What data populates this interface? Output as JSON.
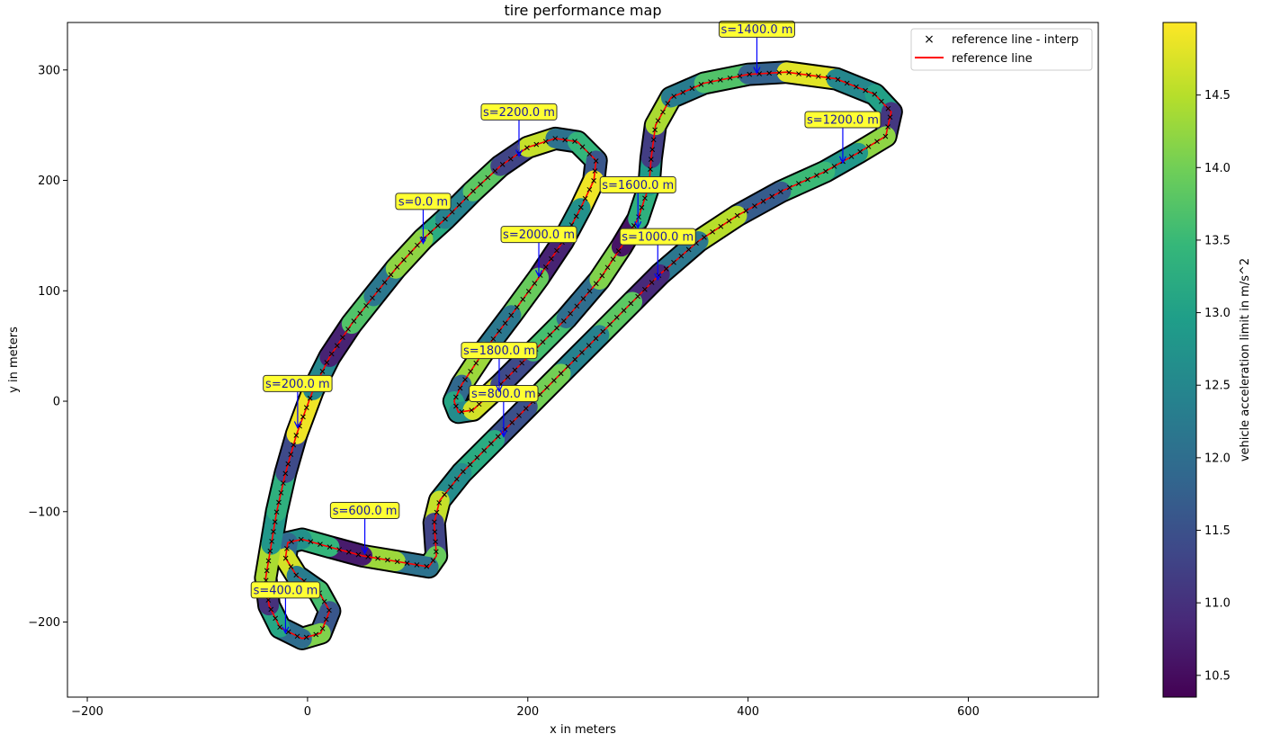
{
  "chart_data": {
    "type": "scatter",
    "title": "tire performance map",
    "xlabel": "x in meters",
    "ylabel": "y in meters",
    "xlim": [
      -218,
      718
    ],
    "ylim": [
      -268,
      343
    ],
    "xticks": [
      "−200",
      "0",
      "200",
      "400",
      "600"
    ],
    "xtick_values": [
      -200,
      0,
      200,
      400,
      600
    ],
    "yticks": [
      "300",
      "200",
      "100",
      "0",
      "−100",
      "−200"
    ],
    "ytick_values": [
      300,
      200,
      100,
      0,
      -100,
      -200
    ],
    "grid": false,
    "legend_position": "upper right",
    "legend": [
      {
        "label": "reference line - interp",
        "marker": "x",
        "color": "#000000"
      },
      {
        "label": "reference line",
        "marker": "line",
        "color": "#ff0000"
      }
    ],
    "colorbar": {
      "label": "vehicle acceleration limit in m/s^2",
      "range": [
        10.35,
        15.0
      ],
      "ticks": [
        "10.5",
        "11.0",
        "11.5",
        "12.0",
        "12.5",
        "13.0",
        "13.5",
        "14.0",
        "14.5"
      ],
      "tick_values": [
        10.5,
        11.0,
        11.5,
        12.0,
        12.5,
        13.0,
        13.5,
        14.0,
        14.5
      ],
      "colormap": "viridis"
    },
    "track_centerline": [
      [
        105,
        147
      ],
      [
        125,
        165
      ],
      [
        150,
        190
      ],
      [
        175,
        213
      ],
      [
        200,
        230
      ],
      [
        225,
        238
      ],
      [
        245,
        235
      ],
      [
        262,
        218
      ],
      [
        260,
        200
      ],
      [
        248,
        175
      ],
      [
        232,
        145
      ],
      [
        210,
        112
      ],
      [
        185,
        78
      ],
      [
        160,
        45
      ],
      [
        140,
        15
      ],
      [
        133,
        0
      ],
      [
        137,
        -10
      ],
      [
        150,
        -8
      ],
      [
        175,
        15
      ],
      [
        205,
        45
      ],
      [
        235,
        75
      ],
      [
        265,
        110
      ],
      [
        285,
        140
      ],
      [
        300,
        165
      ],
      [
        310,
        195
      ],
      [
        312,
        220
      ],
      [
        316,
        250
      ],
      [
        330,
        275
      ],
      [
        360,
        288
      ],
      [
        400,
        296
      ],
      [
        435,
        298
      ],
      [
        480,
        292
      ],
      [
        515,
        278
      ],
      [
        530,
        262
      ],
      [
        525,
        240
      ],
      [
        500,
        225
      ],
      [
        470,
        208
      ],
      [
        430,
        190
      ],
      [
        390,
        168
      ],
      [
        355,
        145
      ],
      [
        320,
        115
      ],
      [
        295,
        90
      ],
      [
        265,
        60
      ],
      [
        230,
        25
      ],
      [
        200,
        -5
      ],
      [
        170,
        -35
      ],
      [
        140,
        -65
      ],
      [
        120,
        -90
      ],
      [
        115,
        -110
      ],
      [
        117,
        -140
      ],
      [
        110,
        -150
      ],
      [
        80,
        -145
      ],
      [
        50,
        -140
      ],
      [
        20,
        -132
      ],
      [
        -5,
        -125
      ],
      [
        -18,
        -128
      ],
      [
        -20,
        -142
      ],
      [
        -10,
        -158
      ],
      [
        10,
        -172
      ],
      [
        20,
        -190
      ],
      [
        12,
        -210
      ],
      [
        -5,
        -215
      ],
      [
        -25,
        -205
      ],
      [
        -35,
        -185
      ],
      [
        -38,
        -160
      ],
      [
        -33,
        -130
      ],
      [
        -28,
        -100
      ],
      [
        -20,
        -65
      ],
      [
        -10,
        -30
      ],
      [
        5,
        10
      ],
      [
        20,
        40
      ],
      [
        40,
        70
      ],
      [
        60,
        95
      ],
      [
        80,
        120
      ],
      [
        105,
        147
      ]
    ],
    "track_colors_ms2": [
      13.2,
      12.4,
      13.8,
      11.3,
      14.6,
      12.1,
      13.4,
      11.6,
      14.9,
      12.7,
      10.8,
      13.9,
      12.2,
      14.3,
      11.9,
      13.1,
      12.6,
      14.7,
      11.4,
      13.6,
      12.0,
      14.1,
      10.6,
      13.3,
      12.9,
      11.2,
      14.4,
      12.3,
      13.7,
      11.8,
      14.8,
      12.5,
      13.0,
      11.1,
      14.2,
      12.8,
      13.5,
      11.7,
      14.5,
      12.2,
      10.9,
      13.8,
      12.4,
      14.0,
      11.5,
      13.2,
      12.6,
      14.6,
      11.3,
      13.9,
      12.1,
      14.3,
      10.7,
      13.4,
      12.7,
      11.9,
      14.7,
      12.3,
      13.6,
      11.6,
      14.1,
      12.0,
      13.1,
      11.0,
      14.4,
      12.8,
      13.3,
      11.4,
      14.9,
      12.5,
      10.8,
      13.7,
      12.2,
      14.2,
      11.8
    ],
    "annotations": [
      {
        "label": "s=0.0 m",
        "text_xy": [
          105,
          181
        ],
        "point_xy": [
          105,
          143
        ]
      },
      {
        "label": "s=200.0 m",
        "text_xy": [
          -9,
          16
        ],
        "point_xy": [
          -9,
          -24
        ]
      },
      {
        "label": "s=400.0 m",
        "text_xy": [
          -20,
          -171
        ],
        "point_xy": [
          -20,
          -210
        ]
      },
      {
        "label": "s=600.0 m",
        "text_xy": [
          52,
          -99
        ],
        "point_xy": [
          52,
          -138
        ]
      },
      {
        "label": "s=800.0 m",
        "text_xy": [
          178,
          7
        ],
        "point_xy": [
          178,
          -32
        ]
      },
      {
        "label": "s=1000.0 m",
        "text_xy": [
          318,
          149
        ],
        "point_xy": [
          318,
          110
        ]
      },
      {
        "label": "s=1200.0 m",
        "text_xy": [
          486,
          255
        ],
        "point_xy": [
          486,
          216
        ]
      },
      {
        "label": "s=1400.0 m",
        "text_xy": [
          408,
          337
        ],
        "point_xy": [
          408,
          297
        ]
      },
      {
        "label": "s=1600.0 m",
        "text_xy": [
          300,
          196
        ],
        "point_xy": [
          300,
          157
        ]
      },
      {
        "label": "s=1800.0 m",
        "text_xy": [
          174,
          46
        ],
        "point_xy": [
          174,
          9
        ]
      },
      {
        "label": "s=2000.0 m",
        "text_xy": [
          210,
          151
        ],
        "point_xy": [
          210,
          113
        ]
      },
      {
        "label": "s=2200.0 m",
        "text_xy": [
          192,
          262
        ],
        "point_xy": [
          192,
          222
        ]
      }
    ]
  },
  "colors": {
    "reference_line": "#ff0000",
    "interp_marker": "#000000",
    "annotation_box": "#ffff33",
    "annotation_text": "#1a1aa0",
    "annotation_arrow": "#0000ff"
  }
}
